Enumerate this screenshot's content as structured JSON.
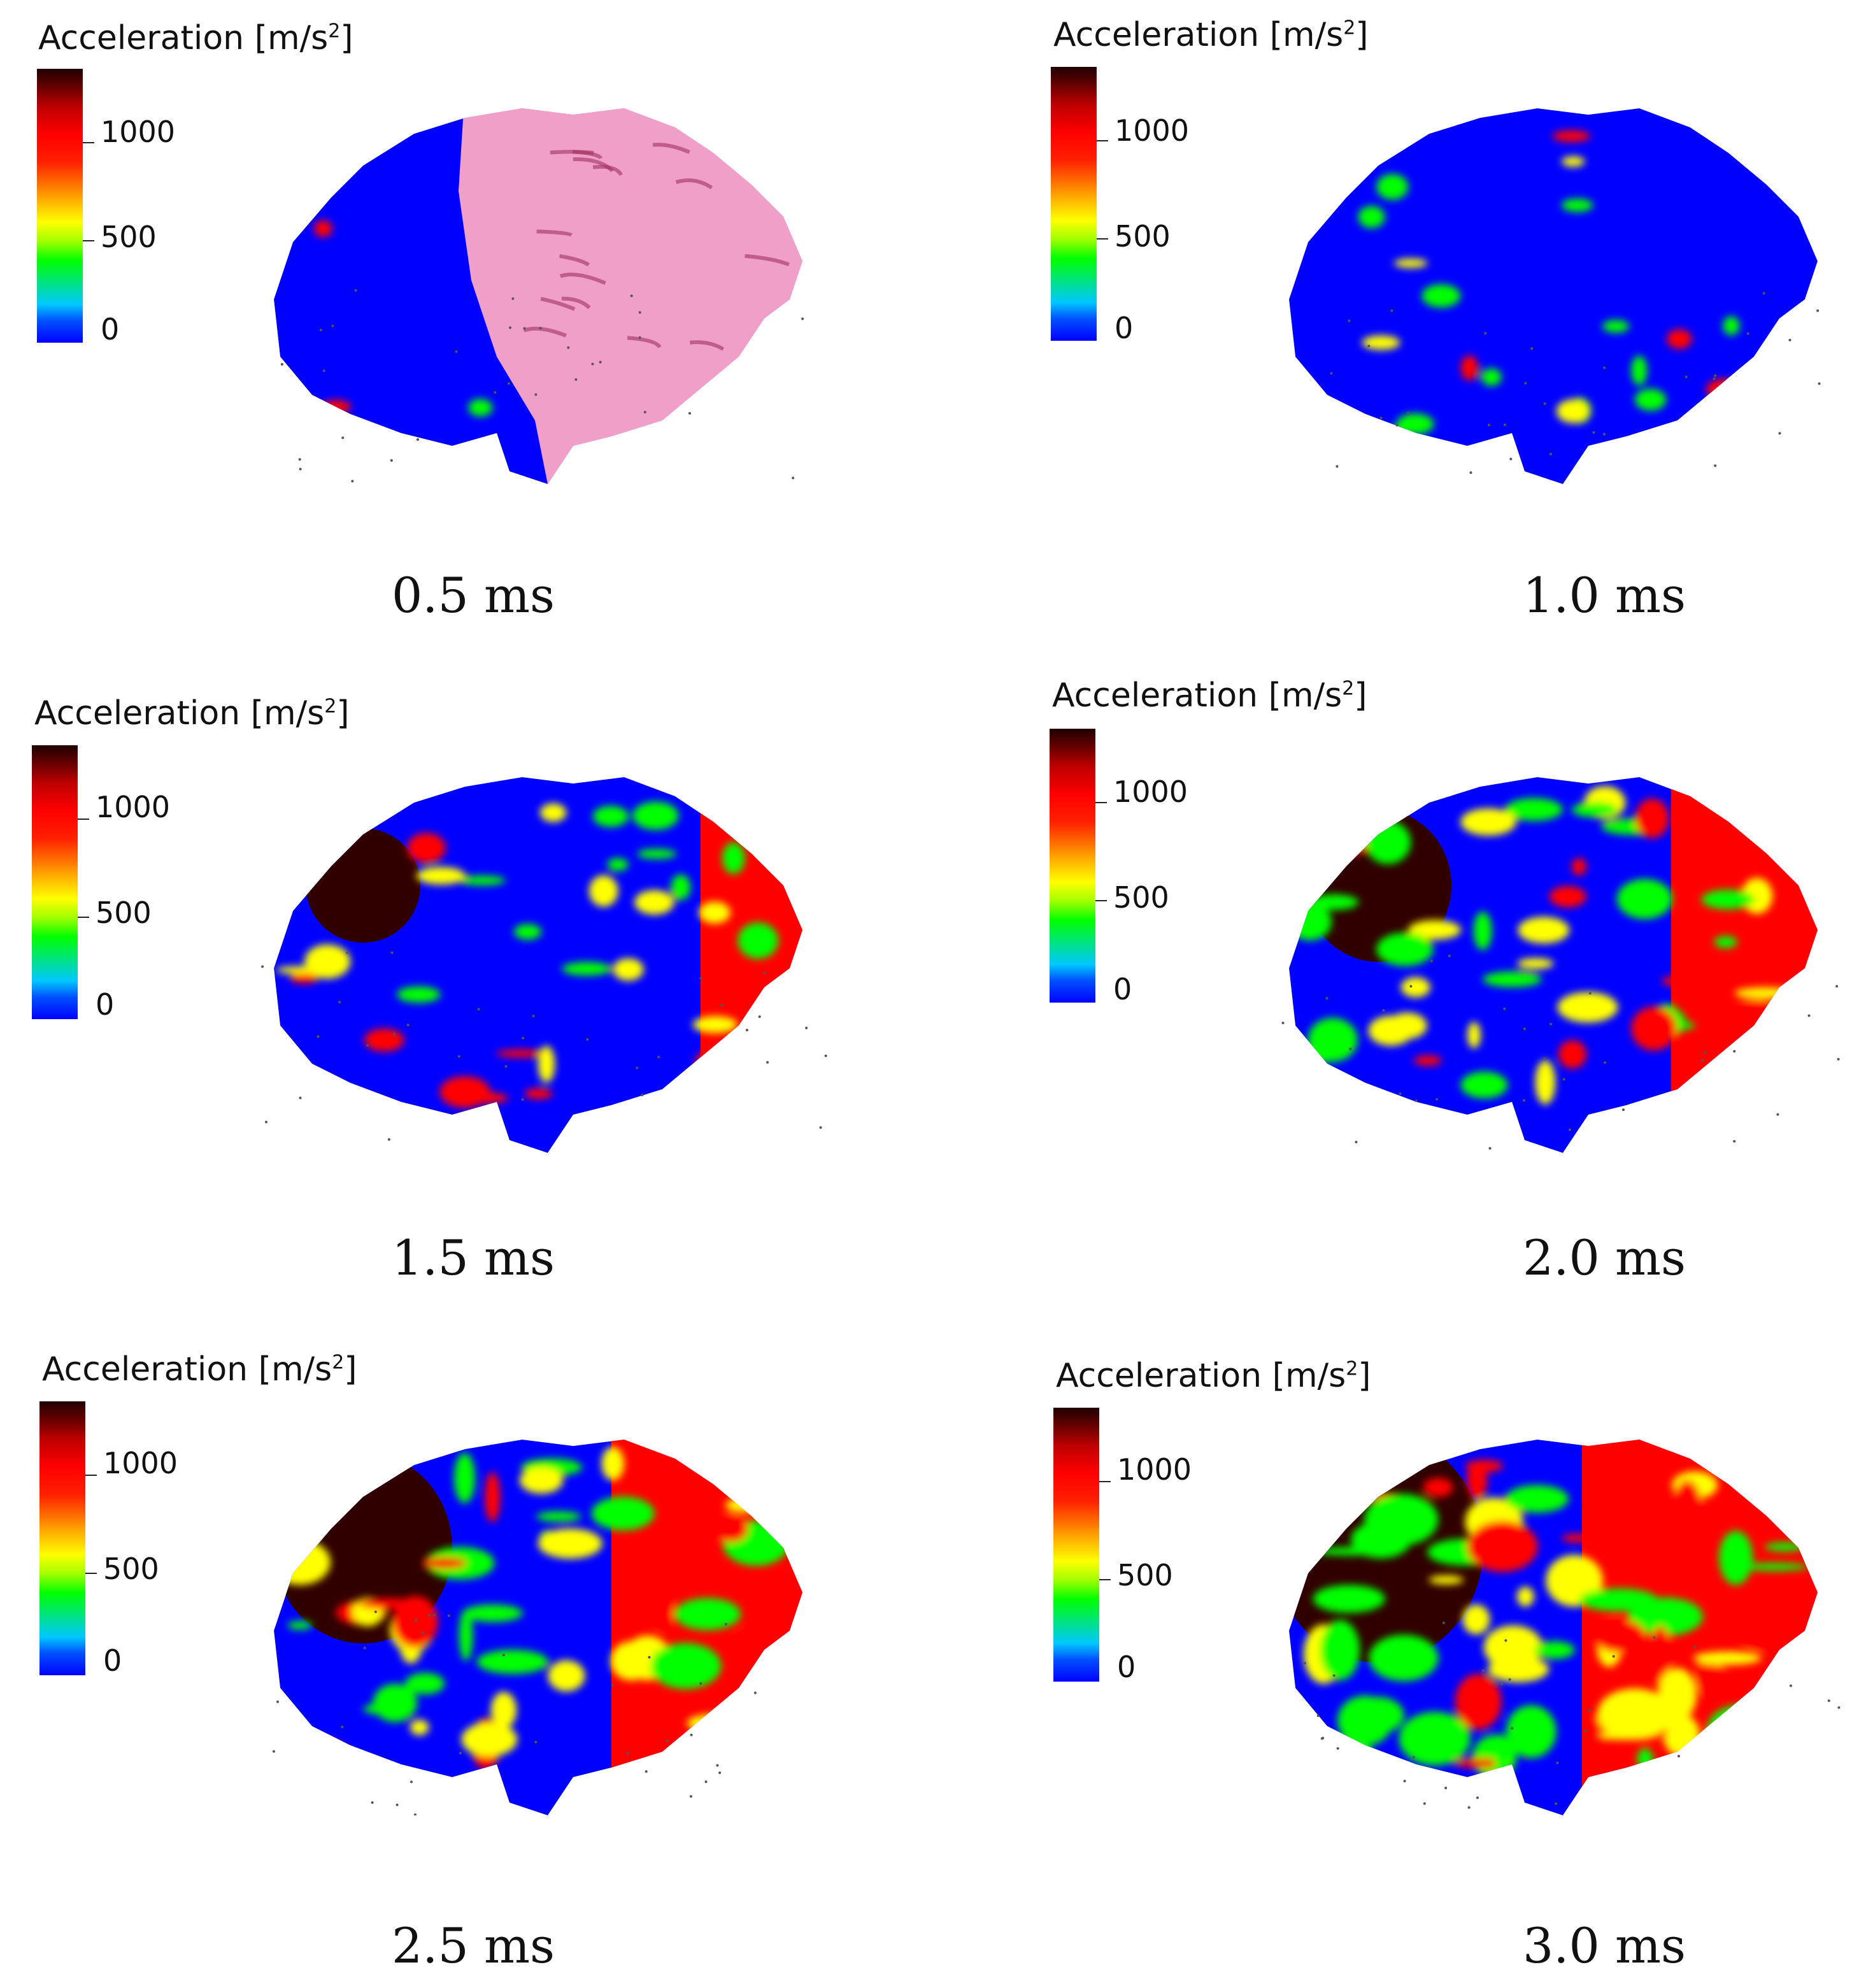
{
  "colorbar": {
    "title_prefix": "Acceleration [m/s",
    "title_exp": "2",
    "title_suffix": "]",
    "ticks": [
      "1000",
      "500",
      "0"
    ]
  },
  "panels": [
    {
      "time": "0.5 ms",
      "stage": 0
    },
    {
      "time": "1.0 ms",
      "stage": 1
    },
    {
      "time": "1.5 ms",
      "stage": 2
    },
    {
      "time": "2.0 ms",
      "stage": 3
    },
    {
      "time": "2.5 ms",
      "stage": 4
    },
    {
      "time": "3.0 ms",
      "stage": 5
    }
  ],
  "colors": {
    "low": "#0000ff",
    "mid": "#00ff00",
    "high": "#ff0000",
    "peak": "#300000",
    "tissue": "#f0a0c8"
  }
}
